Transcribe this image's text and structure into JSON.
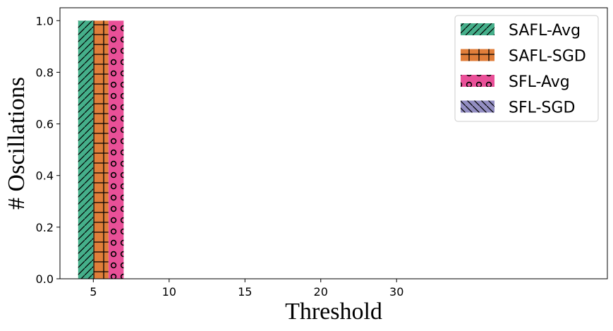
{
  "chart_data": {
    "type": "bar",
    "xlabel": "Threshold",
    "ylabel": "# Oscillations",
    "xlim": [
      2.8,
      38.9
    ],
    "ylim": [
      0.0,
      1.05
    ],
    "x_ticks": [
      5,
      10,
      15,
      20,
      30
    ],
    "x_tick_values": [
      5,
      10,
      15,
      20,
      25
    ],
    "y_ticks": [
      "0.0",
      "0.2",
      "0.4",
      "0.6",
      "0.8",
      "1.0"
    ],
    "legend_position": "top-right",
    "grid": false,
    "bar_width": 1,
    "series": [
      {
        "name": "SAFL-Avg",
        "color": "#45AF8A",
        "hatch": "forward-slash",
        "x": [
          4,
          9,
          14,
          19,
          24
        ],
        "values": [
          1.0,
          0,
          0,
          0,
          0
        ]
      },
      {
        "name": "SAFL-SGD",
        "color": "#E07E3A",
        "hatch": "grid",
        "x": [
          5,
          10,
          15,
          20,
          25
        ],
        "values": [
          1.0,
          0,
          0,
          0,
          0
        ]
      },
      {
        "name": "SFL-Avg",
        "color": "#E95098",
        "hatch": "circles",
        "x": [
          6,
          11,
          16,
          21,
          26
        ],
        "values": [
          1.0,
          0,
          0,
          0,
          0
        ]
      },
      {
        "name": "SFL-SGD",
        "color": "#938EC2",
        "hatch": "back-slash",
        "x": [
          7,
          12,
          17,
          22,
          27
        ],
        "values": [
          0,
          0,
          0,
          0,
          0
        ]
      }
    ]
  }
}
